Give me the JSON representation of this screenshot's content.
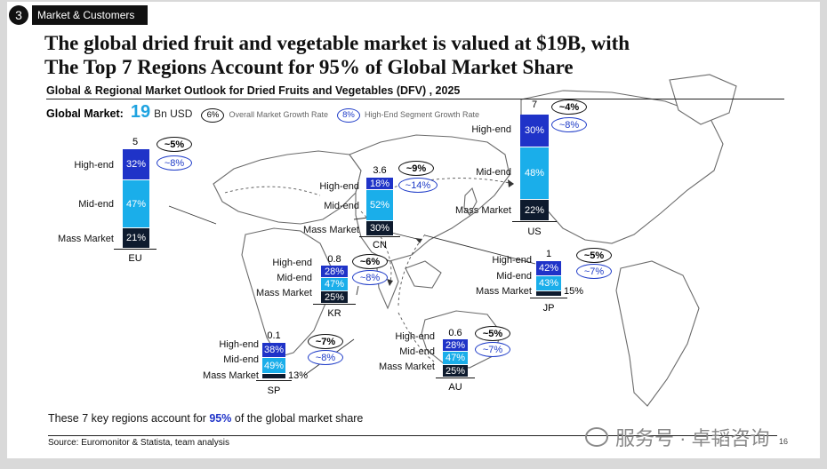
{
  "header": {
    "section_number": "3",
    "section_label": "Market & Customers",
    "title_line1": "The global dried fruit and vegetable market is valued at $19B, with",
    "title_line2": "The Top 7 Regions Account for 95% of Global Market Share",
    "subtitle": "Global & Regional Market Outlook for Dried Fruits and Vegetables (DFV) , 2025"
  },
  "global_market": {
    "label": "Global Market:",
    "value": "19",
    "unit": "Bn USD",
    "overall_rate": "6%",
    "overall_rate_label": "Overall Market Growth Rate",
    "highend_rate": "8%",
    "highend_rate_label": "High-End Segment Growth Rate"
  },
  "segment_labels": {
    "high": "High-end",
    "mid": "Mid-end",
    "mass": "Mass Market"
  },
  "regions": [
    {
      "code": "EU",
      "total": "5",
      "high": "32%",
      "mid": "47%",
      "mass": "21%",
      "overall": "~5%",
      "highend": "~8%"
    },
    {
      "code": "CN",
      "total": "3.6",
      "high": "18%",
      "mid": "52%",
      "mass": "30%",
      "overall": "~9%",
      "highend": "~14%"
    },
    {
      "code": "US",
      "total": "7",
      "high": "30%",
      "mid": "48%",
      "mass": "22%",
      "overall": "~4%",
      "highend": "~8%"
    },
    {
      "code": "KR",
      "total": "0.8",
      "high": "28%",
      "mid": "47%",
      "mass": "25%",
      "overall": "~6%",
      "highend": "~8%"
    },
    {
      "code": "JP",
      "total": "1",
      "high": "42%",
      "mid": "43%",
      "mass": "15%",
      "overall": "~5%",
      "highend": "~7%"
    },
    {
      "code": "SP",
      "total": "0.1",
      "high": "38%",
      "mid": "49%",
      "mass": "13%",
      "overall": "~7%",
      "highend": "~8%"
    },
    {
      "code": "AU",
      "total": "0.6",
      "high": "28%",
      "mid": "47%",
      "mass": "25%",
      "overall": "~5%",
      "highend": "~7%"
    }
  ],
  "footer": {
    "note_before": "These 7 key regions account for ",
    "note_highlight": "95%",
    "note_after": " of the global market share",
    "source": "Source:  Euromonitor & Statista, team analysis",
    "page": "16"
  },
  "watermark": "服务号 · 卓韬咨询",
  "colors": {
    "high": "#1f33c8",
    "mid": "#1aaeea",
    "mass": "#0e1b2e",
    "accent": "#1fa3e0"
  }
}
